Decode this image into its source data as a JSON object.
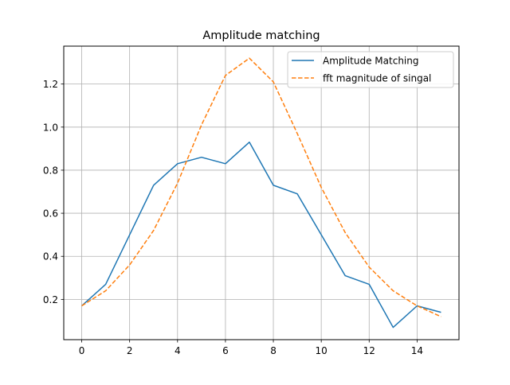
{
  "chart_data": {
    "type": "line",
    "title": "Amplitude matching",
    "xlabel": "",
    "ylabel": "",
    "xlim": [
      -0.75,
      15.75
    ],
    "ylim": [
      0.013,
      1.376
    ],
    "x_ticks": [
      0,
      2,
      4,
      6,
      8,
      10,
      12,
      14
    ],
    "y_ticks": [
      0.2,
      0.4,
      0.6,
      0.8,
      1.0,
      1.2
    ],
    "x_tick_labels": [
      "0",
      "2",
      "4",
      "6",
      "8",
      "10",
      "12",
      "14"
    ],
    "y_tick_labels": [
      "0.2",
      "0.4",
      "0.6",
      "0.8",
      "1.0",
      "1.2"
    ],
    "grid": true,
    "legend_position": "upper right",
    "x": [
      0,
      1,
      2,
      3,
      4,
      5,
      6,
      7,
      8,
      9,
      10,
      11,
      12,
      13,
      14,
      15
    ],
    "series": [
      {
        "name": "Amplitude Matching",
        "style": "solid",
        "color": "#1f77b4",
        "values": [
          0.17,
          0.27,
          0.5,
          0.73,
          0.83,
          0.86,
          0.83,
          0.93,
          0.73,
          0.69,
          0.5,
          0.31,
          0.27,
          0.07,
          0.17,
          0.14
        ]
      },
      {
        "name": "fft magnitude of singal",
        "style": "dashed",
        "color": "#ff7f0e",
        "values": [
          0.17,
          0.24,
          0.36,
          0.52,
          0.74,
          1.01,
          1.24,
          1.32,
          1.21,
          0.97,
          0.72,
          0.51,
          0.35,
          0.24,
          0.17,
          0.12
        ]
      }
    ]
  }
}
